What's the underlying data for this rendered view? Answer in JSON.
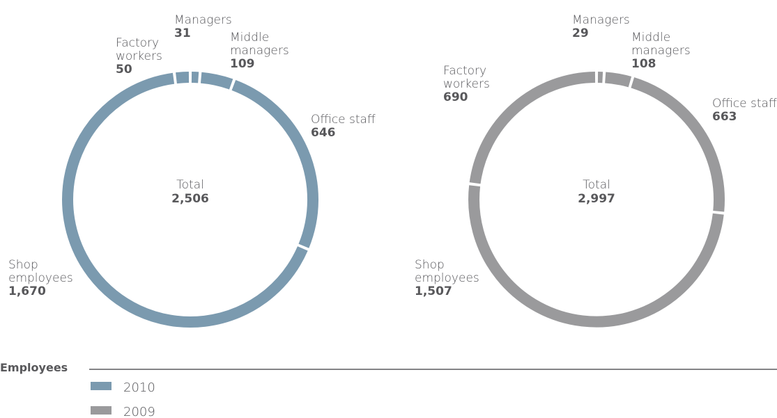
{
  "chart_data": [
    {
      "type": "pie",
      "series_name": "2010",
      "color": "#7b9aaf",
      "center_label": "Total",
      "total": "2,506",
      "slices": [
        {
          "label_lines": [
            "Managers"
          ],
          "value": 31,
          "value_label": "31"
        },
        {
          "label_lines": [
            "Middle",
            "managers"
          ],
          "value": 109,
          "value_label": "109"
        },
        {
          "label_lines": [
            "Office staff"
          ],
          "value": 646,
          "value_label": "646"
        },
        {
          "label_lines": [
            "Shop",
            "employees"
          ],
          "value": 1670,
          "value_label": "1,670"
        },
        {
          "label_lines": [
            "Factory",
            "workers"
          ],
          "value": 50,
          "value_label": "50"
        }
      ]
    },
    {
      "type": "pie",
      "series_name": "2009",
      "color": "#9a9a9c",
      "center_label": "Total",
      "total": "2,997",
      "slices": [
        {
          "label_lines": [
            "Managers"
          ],
          "value": 29,
          "value_label": "29"
        },
        {
          "label_lines": [
            "Middle",
            "managers"
          ],
          "value": 108,
          "value_label": "108"
        },
        {
          "label_lines": [
            "Office staff"
          ],
          "value": 663,
          "value_label": "663"
        },
        {
          "label_lines": [
            "Shop",
            "employees"
          ],
          "value": 1507,
          "value_label": "1,507"
        },
        {
          "label_lines": [
            "Factory",
            "workers"
          ],
          "value": 690,
          "value_label": "690"
        }
      ]
    }
  ],
  "legend": {
    "title": "Employees",
    "items": [
      {
        "label": "2010",
        "color": "#7b9aaf"
      },
      {
        "label": "2009",
        "color": "#9a9a9c"
      }
    ]
  },
  "colors": {
    "legend_rule": "#5a5a5e",
    "text": "#58585b"
  }
}
